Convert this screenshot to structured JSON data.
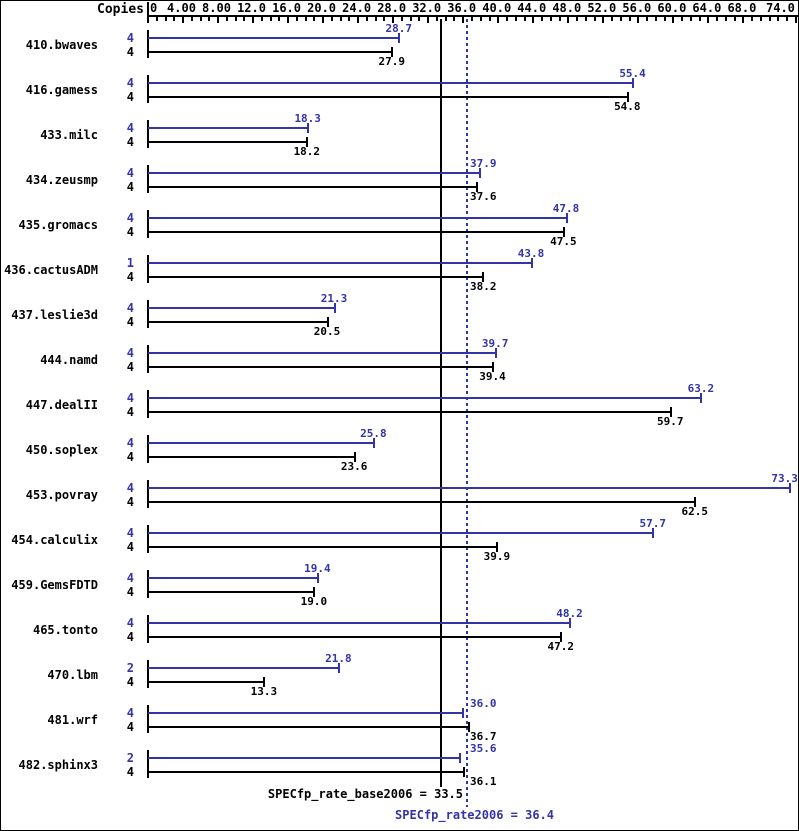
{
  "chart_data": {
    "type": "bar",
    "orientation": "horizontal",
    "title": "",
    "copies_header": "Copies",
    "xlim": [
      0,
      74
    ],
    "minor_tick_interval": 1,
    "grid": false,
    "x_ticks": [
      {
        "value": 0,
        "label": "0"
      },
      {
        "value": 4,
        "label": "4.00"
      },
      {
        "value": 8,
        "label": "8.00"
      },
      {
        "value": 12,
        "label": "12.0"
      },
      {
        "value": 16,
        "label": "16.0"
      },
      {
        "value": 20,
        "label": "20.0"
      },
      {
        "value": 24,
        "label": "24.0"
      },
      {
        "value": 28,
        "label": "28.0"
      },
      {
        "value": 32,
        "label": "32.0"
      },
      {
        "value": 36,
        "label": "36.0"
      },
      {
        "value": 40,
        "label": "40.0"
      },
      {
        "value": 44,
        "label": "44.0"
      },
      {
        "value": 48,
        "label": "48.0"
      },
      {
        "value": 52,
        "label": "52.0"
      },
      {
        "value": 56,
        "label": "56.0"
      },
      {
        "value": 60,
        "label": "60.0"
      },
      {
        "value": 64,
        "label": "64.0"
      },
      {
        "value": 68,
        "label": "68.0"
      },
      {
        "value": 74,
        "label": "74.0"
      }
    ],
    "series": [
      {
        "name": "peak",
        "color": "#3333aa"
      },
      {
        "name": "base",
        "color": "#000000"
      }
    ],
    "benchmarks": [
      {
        "name": "410.bwaves",
        "peak_copies": "4",
        "peak": 28.7,
        "base_copies": "4",
        "base": 27.9
      },
      {
        "name": "416.gamess",
        "peak_copies": "4",
        "peak": 55.4,
        "base_copies": "4",
        "base": 54.8
      },
      {
        "name": "433.milc",
        "peak_copies": "4",
        "peak": 18.3,
        "base_copies": "4",
        "base": 18.2
      },
      {
        "name": "434.zeusmp",
        "peak_copies": "4",
        "peak": 37.9,
        "base_copies": "4",
        "base": 37.6
      },
      {
        "name": "435.gromacs",
        "peak_copies": "4",
        "peak": 47.8,
        "base_copies": "4",
        "base": 47.5
      },
      {
        "name": "436.cactusADM",
        "peak_copies": "1",
        "peak": 43.8,
        "base_copies": "4",
        "base": 38.2
      },
      {
        "name": "437.leslie3d",
        "peak_copies": "4",
        "peak": 21.3,
        "base_copies": "4",
        "base": 20.5
      },
      {
        "name": "444.namd",
        "peak_copies": "4",
        "peak": 39.7,
        "base_copies": "4",
        "base": 39.4
      },
      {
        "name": "447.dealII",
        "peak_copies": "4",
        "peak": 63.2,
        "base_copies": "4",
        "base": 59.7
      },
      {
        "name": "450.soplex",
        "peak_copies": "4",
        "peak": 25.8,
        "base_copies": "4",
        "base": 23.6
      },
      {
        "name": "453.povray",
        "peak_copies": "4",
        "peak": 73.3,
        "base_copies": "4",
        "base": 62.5
      },
      {
        "name": "454.calculix",
        "peak_copies": "4",
        "peak": 57.7,
        "base_copies": "4",
        "base": 39.9
      },
      {
        "name": "459.GemsFDTD",
        "peak_copies": "4",
        "peak": 19.4,
        "base_copies": "4",
        "base": 19.0
      },
      {
        "name": "465.tonto",
        "peak_copies": "4",
        "peak": 48.2,
        "base_copies": "4",
        "base": 47.2
      },
      {
        "name": "470.lbm",
        "peak_copies": "2",
        "peak": 21.8,
        "base_copies": "4",
        "base": 13.3
      },
      {
        "name": "481.wrf",
        "peak_copies": "4",
        "peak": 36.0,
        "base_copies": "4",
        "base": 36.7
      },
      {
        "name": "482.sphinx3",
        "peak_copies": "2",
        "peak": 35.6,
        "base_copies": "4",
        "base": 36.1
      }
    ],
    "reference_lines": [
      {
        "name": "base_mean",
        "label": "SPECfp_rate_base2006 = 33.5",
        "value": 33.5,
        "style": "solid",
        "color": "#000000"
      },
      {
        "name": "peak_mean",
        "label": "SPECfp_rate2006 = 36.4",
        "value": 36.4,
        "style": "dotted",
        "color": "#3333aa"
      }
    ]
  }
}
